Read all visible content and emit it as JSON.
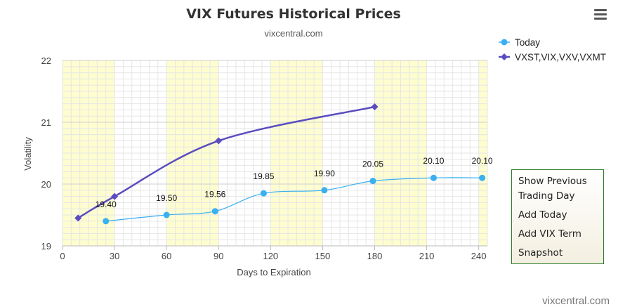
{
  "chart_data": {
    "type": "line",
    "title": "VIX Futures Historical Prices",
    "subtitle": "vixcentral.com",
    "xlabel": "Days to Expiration",
    "ylabel": "Volatility",
    "xlim": [
      0,
      245
    ],
    "ylim": [
      19,
      22
    ],
    "xticks": [
      0,
      30,
      60,
      90,
      120,
      150,
      180,
      210,
      240
    ],
    "yticks": [
      19,
      20,
      21,
      22
    ],
    "grid": true,
    "legend_position": "top-right",
    "highlight_bands": [
      [
        0,
        30
      ],
      [
        60,
        90
      ],
      [
        120,
        150
      ],
      [
        180,
        210
      ],
      [
        240,
        245
      ]
    ],
    "series": [
      {
        "name": "Today",
        "color": "#3ab0f0",
        "marker": "circle",
        "points": [
          [
            25,
            19.4
          ],
          [
            60,
            19.5
          ],
          [
            88,
            19.56
          ],
          [
            116,
            19.85
          ],
          [
            151,
            19.9
          ],
          [
            179,
            20.05
          ],
          [
            214,
            20.1
          ],
          [
            242,
            20.1
          ]
        ],
        "labels": [
          "19.40",
          "19.50",
          "19.56",
          "19.85",
          "19.90",
          "20.05",
          "20.10",
          "20.10"
        ]
      },
      {
        "name": "VXST,VIX,VXV,VXMT",
        "color": "#5a4cc0",
        "marker": "diamond",
        "points": [
          [
            9,
            19.45
          ],
          [
            30,
            19.8
          ],
          [
            90,
            20.7
          ],
          [
            180,
            21.25
          ]
        ]
      }
    ]
  },
  "menu": {
    "icon": "hamburger-menu-icon",
    "items": [
      "Show Previous Trading Day",
      "Add Today",
      "Add VIX Term",
      "Snapshot"
    ]
  },
  "credit": "vixcentral.com"
}
